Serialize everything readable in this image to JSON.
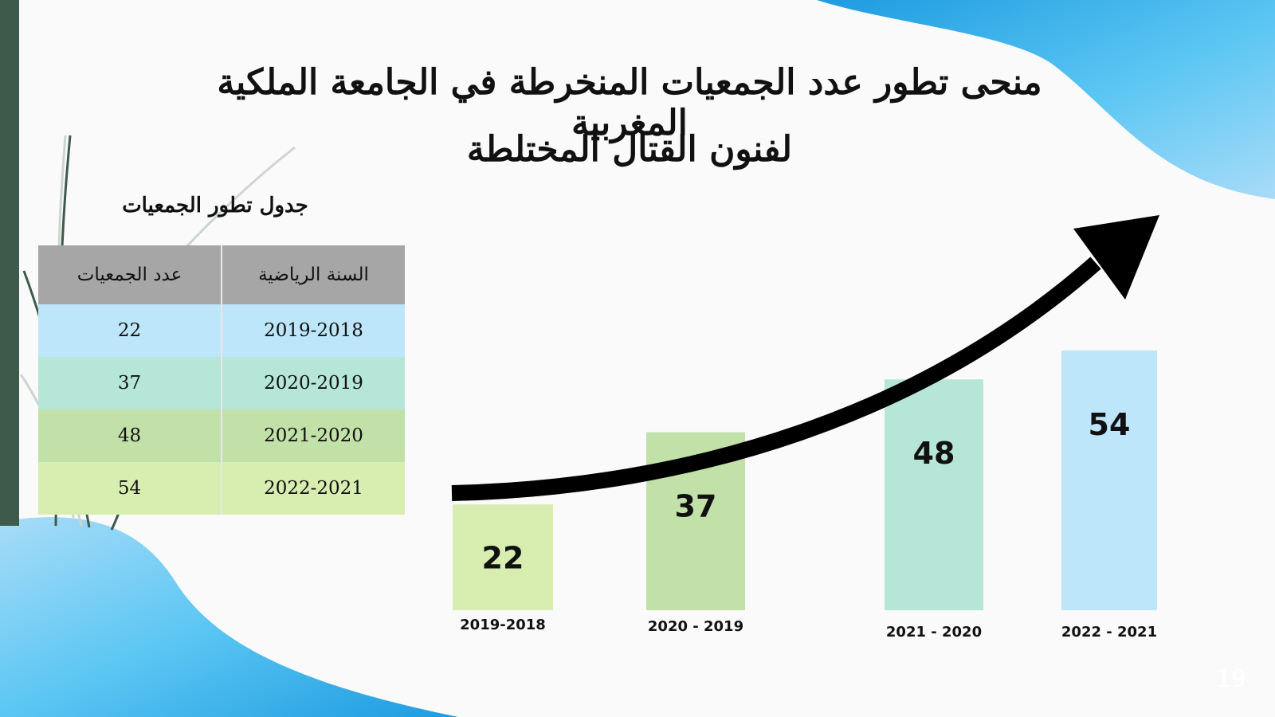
{
  "title_line1": "منحى تطور عدد الجمعيات المنخرطة في الجامعة الملكية المغربية",
  "title_line2": "لفنون القتال المختلطة",
  "table": {
    "caption": "جدول تطور الجمعيات",
    "headers": [
      "السنة الرياضية",
      "عدد الجمعيات"
    ],
    "rows": [
      {
        "season": "2019-2018",
        "count": "22"
      },
      {
        "season": "2020-2019",
        "count": "37"
      },
      {
        "season": "2021-2020",
        "count": "48"
      },
      {
        "season": "2022-2021",
        "count": "54"
      }
    ]
  },
  "page_number": "19",
  "colors": {
    "accent_blue": "#5bc6f3",
    "strip": "#3d5a4a",
    "bar_colors": [
      "#d8edb0",
      "#c2e1a8",
      "#b5e6d8",
      "#bde6fa"
    ]
  },
  "chart_data": {
    "type": "bar",
    "categories": [
      "2019-2018",
      "2020 - 2019",
      "2021 - 2020",
      "2022 - 2021"
    ],
    "values": [
      22,
      37,
      48,
      54
    ],
    "title": "",
    "xlabel": "",
    "ylabel": "",
    "ylim": [
      0,
      54
    ],
    "grid": false,
    "legend": "none",
    "annotations": [
      "upward trend arrow"
    ]
  }
}
